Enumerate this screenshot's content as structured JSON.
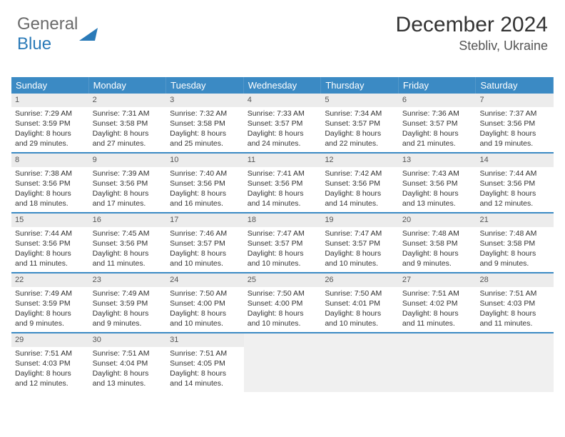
{
  "logo": {
    "text_general": "General",
    "text_blue": "Blue"
  },
  "header": {
    "month": "December 2024",
    "location": "Stebliv, Ukraine"
  },
  "colors": {
    "header_bg": "#3b8ac4",
    "header_text": "#ffffff",
    "daynum_bg": "#ececec",
    "body_text": "#333333",
    "border": "#3b8ac4"
  },
  "day_names": [
    "Sunday",
    "Monday",
    "Tuesday",
    "Wednesday",
    "Thursday",
    "Friday",
    "Saturday"
  ],
  "weeks": [
    [
      {
        "n": "1",
        "sr": "Sunrise: 7:29 AM",
        "ss": "Sunset: 3:59 PM",
        "d1": "Daylight: 8 hours",
        "d2": "and 29 minutes."
      },
      {
        "n": "2",
        "sr": "Sunrise: 7:31 AM",
        "ss": "Sunset: 3:58 PM",
        "d1": "Daylight: 8 hours",
        "d2": "and 27 minutes."
      },
      {
        "n": "3",
        "sr": "Sunrise: 7:32 AM",
        "ss": "Sunset: 3:58 PM",
        "d1": "Daylight: 8 hours",
        "d2": "and 25 minutes."
      },
      {
        "n": "4",
        "sr": "Sunrise: 7:33 AM",
        "ss": "Sunset: 3:57 PM",
        "d1": "Daylight: 8 hours",
        "d2": "and 24 minutes."
      },
      {
        "n": "5",
        "sr": "Sunrise: 7:34 AM",
        "ss": "Sunset: 3:57 PM",
        "d1": "Daylight: 8 hours",
        "d2": "and 22 minutes."
      },
      {
        "n": "6",
        "sr": "Sunrise: 7:36 AM",
        "ss": "Sunset: 3:57 PM",
        "d1": "Daylight: 8 hours",
        "d2": "and 21 minutes."
      },
      {
        "n": "7",
        "sr": "Sunrise: 7:37 AM",
        "ss": "Sunset: 3:56 PM",
        "d1": "Daylight: 8 hours",
        "d2": "and 19 minutes."
      }
    ],
    [
      {
        "n": "8",
        "sr": "Sunrise: 7:38 AM",
        "ss": "Sunset: 3:56 PM",
        "d1": "Daylight: 8 hours",
        "d2": "and 18 minutes."
      },
      {
        "n": "9",
        "sr": "Sunrise: 7:39 AM",
        "ss": "Sunset: 3:56 PM",
        "d1": "Daylight: 8 hours",
        "d2": "and 17 minutes."
      },
      {
        "n": "10",
        "sr": "Sunrise: 7:40 AM",
        "ss": "Sunset: 3:56 PM",
        "d1": "Daylight: 8 hours",
        "d2": "and 16 minutes."
      },
      {
        "n": "11",
        "sr": "Sunrise: 7:41 AM",
        "ss": "Sunset: 3:56 PM",
        "d1": "Daylight: 8 hours",
        "d2": "and 14 minutes."
      },
      {
        "n": "12",
        "sr": "Sunrise: 7:42 AM",
        "ss": "Sunset: 3:56 PM",
        "d1": "Daylight: 8 hours",
        "d2": "and 14 minutes."
      },
      {
        "n": "13",
        "sr": "Sunrise: 7:43 AM",
        "ss": "Sunset: 3:56 PM",
        "d1": "Daylight: 8 hours",
        "d2": "and 13 minutes."
      },
      {
        "n": "14",
        "sr": "Sunrise: 7:44 AM",
        "ss": "Sunset: 3:56 PM",
        "d1": "Daylight: 8 hours",
        "d2": "and 12 minutes."
      }
    ],
    [
      {
        "n": "15",
        "sr": "Sunrise: 7:44 AM",
        "ss": "Sunset: 3:56 PM",
        "d1": "Daylight: 8 hours",
        "d2": "and 11 minutes."
      },
      {
        "n": "16",
        "sr": "Sunrise: 7:45 AM",
        "ss": "Sunset: 3:56 PM",
        "d1": "Daylight: 8 hours",
        "d2": "and 11 minutes."
      },
      {
        "n": "17",
        "sr": "Sunrise: 7:46 AM",
        "ss": "Sunset: 3:57 PM",
        "d1": "Daylight: 8 hours",
        "d2": "and 10 minutes."
      },
      {
        "n": "18",
        "sr": "Sunrise: 7:47 AM",
        "ss": "Sunset: 3:57 PM",
        "d1": "Daylight: 8 hours",
        "d2": "and 10 minutes."
      },
      {
        "n": "19",
        "sr": "Sunrise: 7:47 AM",
        "ss": "Sunset: 3:57 PM",
        "d1": "Daylight: 8 hours",
        "d2": "and 10 minutes."
      },
      {
        "n": "20",
        "sr": "Sunrise: 7:48 AM",
        "ss": "Sunset: 3:58 PM",
        "d1": "Daylight: 8 hours",
        "d2": "and 9 minutes."
      },
      {
        "n": "21",
        "sr": "Sunrise: 7:48 AM",
        "ss": "Sunset: 3:58 PM",
        "d1": "Daylight: 8 hours",
        "d2": "and 9 minutes."
      }
    ],
    [
      {
        "n": "22",
        "sr": "Sunrise: 7:49 AM",
        "ss": "Sunset: 3:59 PM",
        "d1": "Daylight: 8 hours",
        "d2": "and 9 minutes."
      },
      {
        "n": "23",
        "sr": "Sunrise: 7:49 AM",
        "ss": "Sunset: 3:59 PM",
        "d1": "Daylight: 8 hours",
        "d2": "and 9 minutes."
      },
      {
        "n": "24",
        "sr": "Sunrise: 7:50 AM",
        "ss": "Sunset: 4:00 PM",
        "d1": "Daylight: 8 hours",
        "d2": "and 10 minutes."
      },
      {
        "n": "25",
        "sr": "Sunrise: 7:50 AM",
        "ss": "Sunset: 4:00 PM",
        "d1": "Daylight: 8 hours",
        "d2": "and 10 minutes."
      },
      {
        "n": "26",
        "sr": "Sunrise: 7:50 AM",
        "ss": "Sunset: 4:01 PM",
        "d1": "Daylight: 8 hours",
        "d2": "and 10 minutes."
      },
      {
        "n": "27",
        "sr": "Sunrise: 7:51 AM",
        "ss": "Sunset: 4:02 PM",
        "d1": "Daylight: 8 hours",
        "d2": "and 11 minutes."
      },
      {
        "n": "28",
        "sr": "Sunrise: 7:51 AM",
        "ss": "Sunset: 4:03 PM",
        "d1": "Daylight: 8 hours",
        "d2": "and 11 minutes."
      }
    ],
    [
      {
        "n": "29",
        "sr": "Sunrise: 7:51 AM",
        "ss": "Sunset: 4:03 PM",
        "d1": "Daylight: 8 hours",
        "d2": "and 12 minutes."
      },
      {
        "n": "30",
        "sr": "Sunrise: 7:51 AM",
        "ss": "Sunset: 4:04 PM",
        "d1": "Daylight: 8 hours",
        "d2": "and 13 minutes."
      },
      {
        "n": "31",
        "sr": "Sunrise: 7:51 AM",
        "ss": "Sunset: 4:05 PM",
        "d1": "Daylight: 8 hours",
        "d2": "and 14 minutes."
      },
      null,
      null,
      null,
      null
    ]
  ]
}
